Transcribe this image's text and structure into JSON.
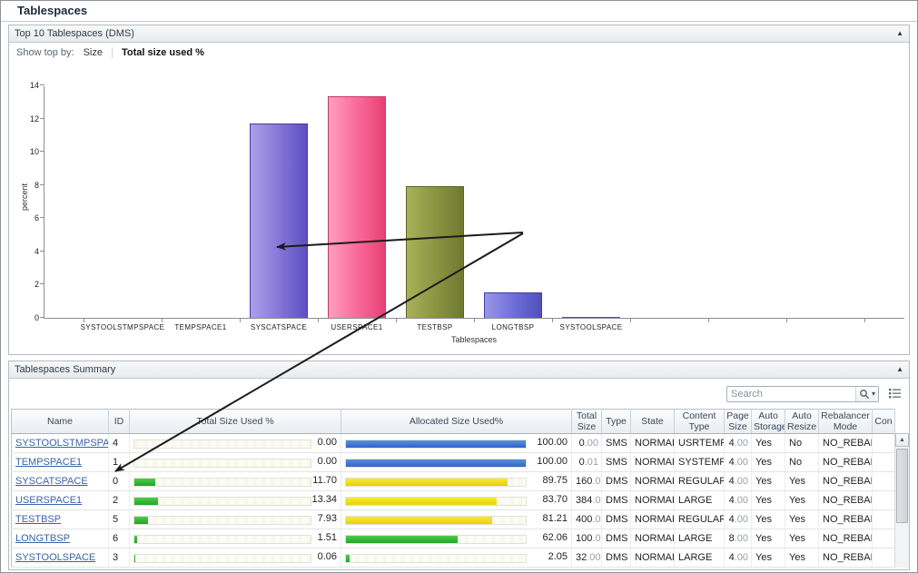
{
  "page": {
    "title": "Tablespaces"
  },
  "top_panel": {
    "title": "Top 10 Tablespaces (DMS)",
    "show_top_by_label": "Show top by:",
    "option_size": "Size",
    "option_total_used": "Total size used %",
    "collapse_glyph": "▲"
  },
  "chart_data": {
    "type": "bar",
    "title": "Top 10 Tablespaces (DMS)",
    "xlabel": "Tablespaces",
    "ylabel": "percent",
    "ylim": [
      0,
      14
    ],
    "ytick_step": 2,
    "grid": false,
    "legend": false,
    "categories": [
      "SYSTOOLSTMPSPACE",
      "TEMPSPACE1",
      "SYSCATSPACE",
      "USERSPACE1",
      "TESTBSP",
      "LONGTBSP",
      "SYSTOOLSPACE"
    ],
    "values": [
      0.0,
      0.0,
      11.7,
      13.34,
      7.93,
      1.51,
      0.06
    ],
    "bar_colors": [
      {
        "light": "#aca0e8",
        "base": "#8677d8",
        "dark": "#5e4ec2",
        "border": "#483a9c"
      },
      {
        "light": "#aca0e8",
        "base": "#8677d8",
        "dark": "#5e4ec2",
        "border": "#483a9c"
      },
      {
        "light": "#aca0e8",
        "base": "#8677d8",
        "dark": "#5e4ec2",
        "border": "#483a9c"
      },
      {
        "light": "#ffa0bf",
        "base": "#fa6a9b",
        "dark": "#e84076",
        "border": "#c23a68"
      },
      {
        "light": "#a7b259",
        "base": "#8b9542",
        "dark": "#6f7a31",
        "border": "#5a6426"
      },
      {
        "light": "#9a97e8",
        "base": "#6f6fd8",
        "dark": "#5150bc",
        "border": "#403fa4"
      },
      {
        "light": "#a7b259",
        "base": "#8b9542",
        "dark": "#6f7a31",
        "border": "#5a6426"
      }
    ]
  },
  "summary_panel": {
    "title": "Tablespaces Summary",
    "search_placeholder": "Search",
    "collapse_glyph": "▲",
    "bar_colors": {
      "green": [
        "#4ecb4f",
        "#22a523"
      ],
      "blue": [
        "#5b8ede",
        "#3265c8"
      ],
      "yellow": [
        "#f7e83a",
        "#e6d204"
      ]
    },
    "table": {
      "columns": [
        "Name",
        "ID",
        "Total Size Used %",
        "Allocated Size Used%",
        "Total Size",
        "Type",
        "State",
        "Content Type",
        "Page Size",
        "Auto Storage",
        "Auto Resize",
        "Rebalancer Mode",
        "Con"
      ],
      "rows": [
        {
          "name": "SYSTOOLSTMPSPACE",
          "id": "4",
          "total_size_used_pct": 0.0,
          "total_size_used_label": "0.00",
          "allocated_used_pct": 100.0,
          "allocated_used_label": "100.00",
          "allocated_bar_color": "blue",
          "total_size": "0.00",
          "type": "SMS",
          "state": "NORMAL",
          "content_type": "USRTEMP",
          "page_size": "4.00",
          "auto_storage": "Yes",
          "auto_resize": "No",
          "rebalancer_mode": "NO_REBAL",
          "con": ""
        },
        {
          "name": "TEMPSPACE1",
          "id": "1",
          "total_size_used_pct": 0.0,
          "total_size_used_label": "0.00",
          "allocated_used_pct": 100.0,
          "allocated_used_label": "100.00",
          "allocated_bar_color": "blue",
          "total_size": "0.01",
          "type": "SMS",
          "state": "NORMAL",
          "content_type": "SYSTEMP",
          "page_size": "4.00",
          "auto_storage": "Yes",
          "auto_resize": "No",
          "rebalancer_mode": "NO_REBAL",
          "con": ""
        },
        {
          "name": "SYSCATSPACE",
          "id": "0",
          "total_size_used_pct": 11.7,
          "total_size_used_label": "11.70",
          "allocated_used_pct": 89.75,
          "allocated_used_label": "89.75",
          "allocated_bar_color": "yellow",
          "total_size": "160.00",
          "type": "DMS",
          "state": "NORMAL",
          "content_type": "REGULAR",
          "page_size": "4.00",
          "auto_storage": "Yes",
          "auto_resize": "Yes",
          "rebalancer_mode": "NO_REBAL",
          "con": ""
        },
        {
          "name": "USERSPACE1",
          "id": "2",
          "total_size_used_pct": 13.34,
          "total_size_used_label": "13.34",
          "allocated_used_pct": 83.7,
          "allocated_used_label": "83.70",
          "allocated_bar_color": "yellow",
          "total_size": "384.00",
          "type": "DMS",
          "state": "NORMAL",
          "content_type": "LARGE",
          "page_size": "4.00",
          "auto_storage": "Yes",
          "auto_resize": "Yes",
          "rebalancer_mode": "NO_REBAL",
          "con": ""
        },
        {
          "name": "TESTBSP",
          "id": "5",
          "total_size_used_pct": 7.93,
          "total_size_used_label": "7.93",
          "allocated_used_pct": 81.21,
          "allocated_used_label": "81.21",
          "allocated_bar_color": "yellow",
          "total_size": "400.00",
          "type": "DMS",
          "state": "NORMAL",
          "content_type": "REGULAR",
          "page_size": "4.00",
          "auto_storage": "Yes",
          "auto_resize": "Yes",
          "rebalancer_mode": "NO_REBAL",
          "con": ""
        },
        {
          "name": "LONGTBSP",
          "id": "6",
          "total_size_used_pct": 1.51,
          "total_size_used_label": "1.51",
          "allocated_used_pct": 62.06,
          "allocated_used_label": "62.06",
          "allocated_bar_color": "green",
          "total_size": "100.00",
          "type": "DMS",
          "state": "NORMAL",
          "content_type": "LARGE",
          "page_size": "8.00",
          "auto_storage": "Yes",
          "auto_resize": "Yes",
          "rebalancer_mode": "NO_REBAL",
          "con": ""
        },
        {
          "name": "SYSTOOLSPACE",
          "id": "3",
          "total_size_used_pct": 0.06,
          "total_size_used_label": "0.06",
          "allocated_used_pct": 2.05,
          "allocated_used_label": "2.05",
          "allocated_bar_color": "green",
          "total_size": "32.00",
          "type": "DMS",
          "state": "NORMAL",
          "content_type": "LARGE",
          "page_size": "4.00",
          "auto_storage": "Yes",
          "auto_resize": "Yes",
          "rebalancer_mode": "NO_REBAL",
          "con": ""
        }
      ]
    }
  }
}
